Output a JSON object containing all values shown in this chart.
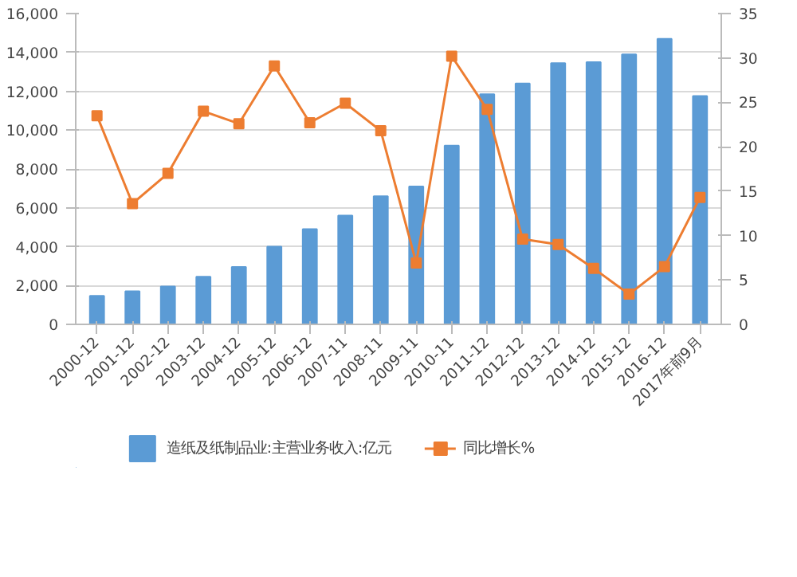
{
  "chart_data": {
    "type": "bar",
    "categories": [
      "2000-12",
      "2001-12",
      "2002-12",
      "2003-12",
      "2004-12",
      "2005-12",
      "2006-12",
      "2007-11",
      "2008-11",
      "2009-11",
      "2010-11",
      "2011-12",
      "2012-12",
      "2013-12",
      "2014-12",
      "2015-12",
      "2016-12",
      "2017年前9月"
    ],
    "series": [
      {
        "name": "造纸及纸制品业:主营业务收入:亿元",
        "color": "#5b9bd5",
        "values": [
          1470,
          1700,
          1950,
          2450,
          2950,
          4000,
          4900,
          5600,
          6600,
          7100,
          9200,
          11850,
          12400,
          13450,
          13500,
          13900,
          14700,
          11750
        ]
      },
      {
        "name": "同比增长%",
        "type": "line",
        "axis": "y2",
        "color": "#ed7d31",
        "values": [
          23.5,
          13.6,
          17.0,
          24.0,
          22.6,
          29.1,
          22.7,
          24.9,
          21.8,
          6.9,
          30.2,
          24.2,
          9.6,
          9.0,
          6.3,
          3.4,
          6.5,
          14.3
        ]
      }
    ],
    "ylim": [
      0,
      16000
    ],
    "yticks": [
      {
        "value": 0,
        "label": "0"
      },
      {
        "value": 2000,
        "label": "2,000"
      },
      {
        "value": 4000,
        "label": "4,000"
      },
      {
        "value": 6000,
        "label": "6,000"
      },
      {
        "value": 8000,
        "label": "8,000"
      },
      {
        "value": 10000,
        "label": "10,000"
      },
      {
        "value": 12000,
        "label": "12,000"
      },
      {
        "value": 14000,
        "label": "14,000"
      },
      {
        "value": 16000,
        "label": "16,000"
      }
    ],
    "y2lim": [
      0,
      35
    ],
    "y2ticks": [
      0,
      5,
      10,
      15,
      20,
      25,
      30,
      35
    ],
    "grid": "y",
    "legend": "bottom",
    "marker": "square"
  }
}
